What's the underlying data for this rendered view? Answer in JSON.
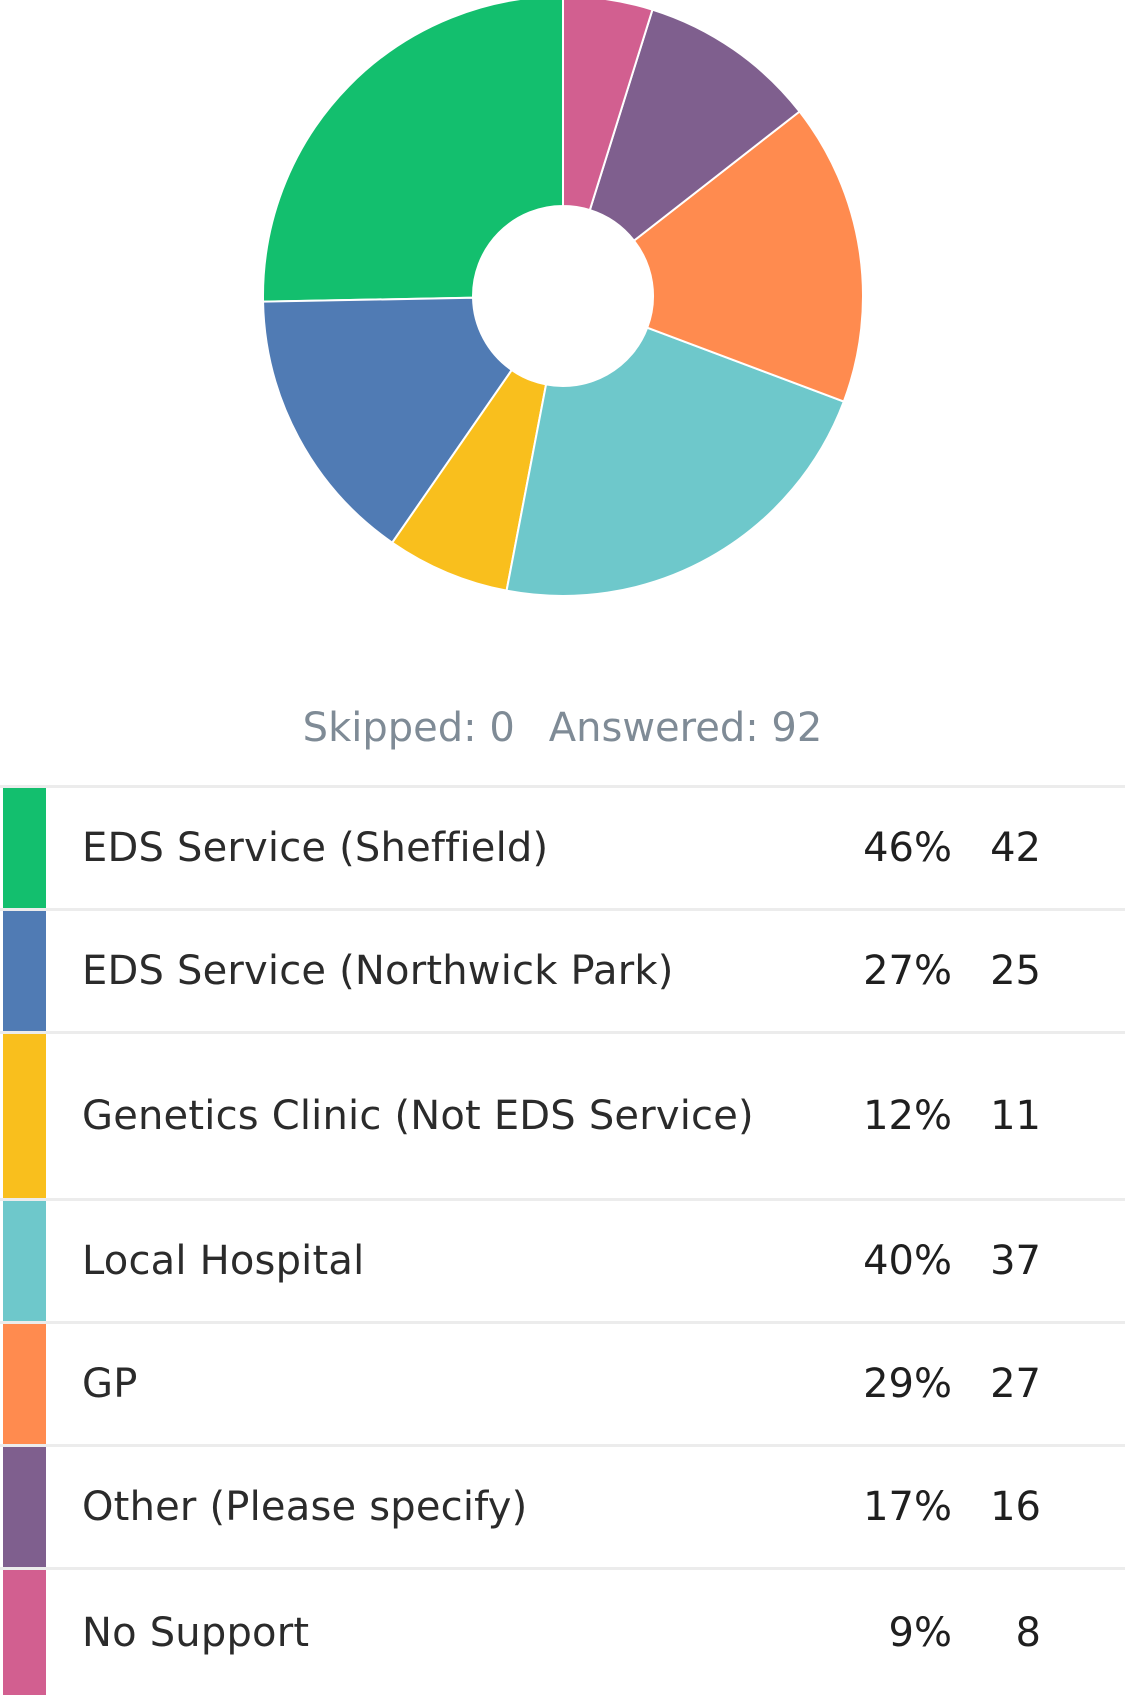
{
  "summary": {
    "skipped_text": "Skipped: 0",
    "answered_text": "Answered: 92"
  },
  "chart_data": {
    "type": "pie",
    "donut": true,
    "categories": [
      "EDS Service (Sheffield)",
      "EDS Service (Northwick Park)",
      "Genetics Clinic (Not EDS Service)",
      "Local Hospital",
      "GP",
      "Other (Please specify)",
      "No Support"
    ],
    "values": [
      42,
      25,
      11,
      37,
      27,
      16,
      8
    ],
    "colors": [
      "#13bf6e",
      "#507bb4",
      "#f9bf1d",
      "#6ec8cb",
      "#ff8b4f",
      "#7f5f8e",
      "#d25f90"
    ],
    "legend": "below"
  },
  "rows": [
    {
      "label": "EDS Service (Sheffield)",
      "percent": "46%",
      "count": "42",
      "color": "#13bf6e"
    },
    {
      "label": "EDS Service (Northwick Park)",
      "percent": "27%",
      "count": "25",
      "color": "#507bb4"
    },
    {
      "label": "Genetics Clinic (Not EDS Service)",
      "percent": "12%",
      "count": "11",
      "color": "#f9bf1d"
    },
    {
      "label": "Local Hospital",
      "percent": "40%",
      "count": "37",
      "color": "#6ec8cb"
    },
    {
      "label": "GP",
      "percent": "29%",
      "count": "27",
      "color": "#ff8b4f"
    },
    {
      "label": "Other (Please specify)",
      "percent": "17%",
      "count": "16",
      "color": "#7f5f8e"
    },
    {
      "label": "No Support",
      "percent": "9%",
      "count": "8",
      "color": "#d25f90"
    }
  ]
}
